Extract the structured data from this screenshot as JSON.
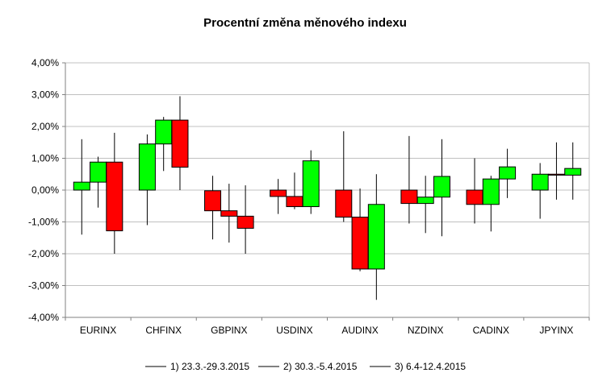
{
  "chart_data": {
    "type": "candlestick",
    "title": "Procentní změna měnového indexu",
    "xlabel": "",
    "ylabel": "",
    "ylim": [
      -4,
      4
    ],
    "y_ticks": [
      "4,00%",
      "3,00%",
      "2,00%",
      "1,00%",
      "0,00%",
      "-1,00%",
      "-2,00%",
      "-3,00%",
      "-4,00%"
    ],
    "y_tick_values": [
      4,
      3,
      2,
      1,
      0,
      -1,
      -2,
      -3,
      -4
    ],
    "categories": [
      "EURINX",
      "CHFINX",
      "GBPINX",
      "USDINX",
      "AUDINX",
      "NZDINX",
      "CADINX",
      "JPYINX"
    ],
    "grid": true,
    "legend_position": "bottom",
    "colors": {
      "up": "#00ff00",
      "down": "#ff0000",
      "grid": "#c0c0c0",
      "axis": "#808080"
    },
    "series": [
      {
        "name": "1) 23.3.-29.3.2015",
        "candles": [
          {
            "open": 0.0,
            "close": 0.25,
            "high": 1.6,
            "low": -1.4
          },
          {
            "open": 0.0,
            "close": 1.45,
            "high": 1.75,
            "low": -1.1
          },
          {
            "open": -0.02,
            "close": -0.65,
            "high": 0.45,
            "low": -1.55
          },
          {
            "open": 0.0,
            "close": -0.2,
            "high": 0.35,
            "low": -0.75
          },
          {
            "open": 0.0,
            "close": -0.85,
            "high": 1.85,
            "low": -1.0
          },
          {
            "open": 0.0,
            "close": -0.42,
            "high": 1.7,
            "low": -1.05
          },
          {
            "open": 0.0,
            "close": -0.45,
            "high": 1.0,
            "low": -1.05
          },
          {
            "open": 0.0,
            "close": 0.5,
            "high": 0.85,
            "low": -0.9
          }
        ]
      },
      {
        "name": "2) 30.3.-5.4.2015",
        "candles": [
          {
            "open": 0.25,
            "close": 0.88,
            "high": 1.05,
            "low": -0.55
          },
          {
            "open": 1.45,
            "close": 2.2,
            "high": 2.3,
            "low": 0.6
          },
          {
            "open": -0.65,
            "close": -0.82,
            "high": 0.2,
            "low": -1.65
          },
          {
            "open": -0.2,
            "close": -0.52,
            "high": 0.55,
            "low": -0.6
          },
          {
            "open": -0.85,
            "close": -2.48,
            "high": 0.05,
            "low": -2.55
          },
          {
            "open": -0.42,
            "close": -0.22,
            "high": 0.45,
            "low": -1.35
          },
          {
            "open": -0.45,
            "close": 0.35,
            "high": 0.45,
            "low": -1.3
          },
          {
            "open": 0.5,
            "close": 0.47,
            "high": 1.5,
            "low": -0.3
          }
        ]
      },
      {
        "name": "3) 6.4-12.4.2015",
        "candles": [
          {
            "open": 0.88,
            "close": -1.28,
            "high": 1.8,
            "low": -2.0
          },
          {
            "open": 2.2,
            "close": 0.72,
            "high": 2.95,
            "low": 0.0
          },
          {
            "open": -0.82,
            "close": -1.2,
            "high": 0.15,
            "low": -2.0
          },
          {
            "open": -0.52,
            "close": 0.92,
            "high": 1.25,
            "low": -0.75
          },
          {
            "open": -2.48,
            "close": -0.45,
            "high": 0.5,
            "low": -3.45
          },
          {
            "open": -0.22,
            "close": 0.43,
            "high": 1.6,
            "low": -1.45
          },
          {
            "open": 0.35,
            "close": 0.73,
            "high": 1.3,
            "low": -0.25
          },
          {
            "open": 0.47,
            "close": 0.68,
            "high": 1.5,
            "low": -0.3
          }
        ]
      }
    ]
  }
}
